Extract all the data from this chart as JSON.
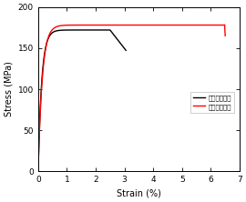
{
  "title": "",
  "xlabel": "Strain (%)",
  "ylabel": "Stress (MPa)",
  "xlim": [
    0,
    7
  ],
  "ylim": [
    0,
    200
  ],
  "xticks": [
    0,
    1,
    2,
    3,
    4,
    5,
    6,
    7
  ],
  "yticks": [
    0,
    50,
    100,
    150,
    200
  ],
  "legend_labels": [
    "산화열처리전",
    "산화열처리후"
  ],
  "legend_colors": [
    "black",
    "red"
  ],
  "background_color": "#ffffff",
  "line_width": 1.0,
  "curve1_color": "black",
  "curve2_color": "red"
}
